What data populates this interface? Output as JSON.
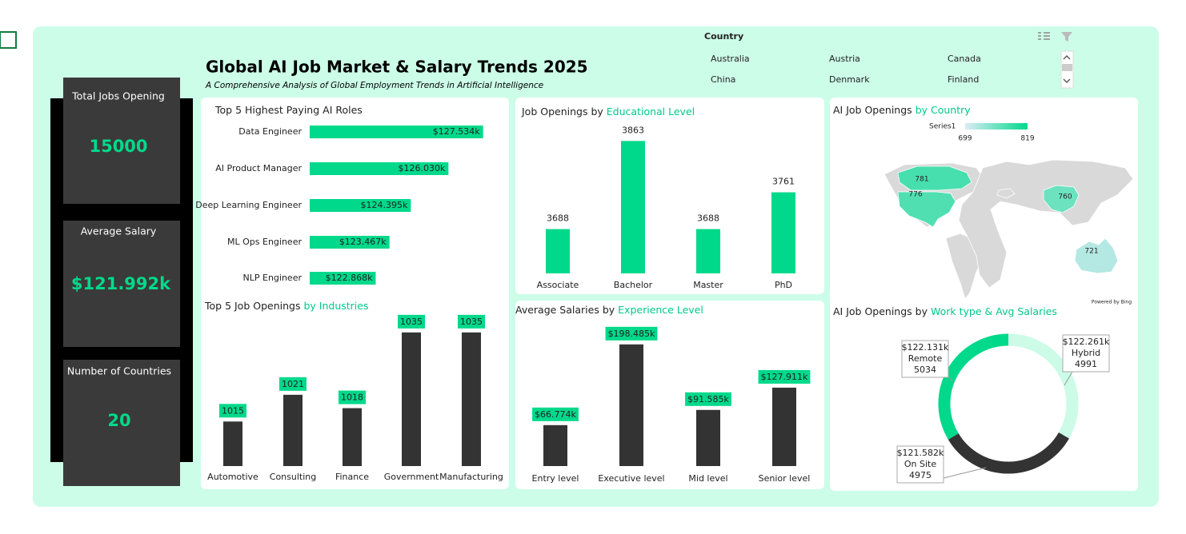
{
  "header": {
    "title": "Global AI Job Market & Salary Trends 2025",
    "subtitle": "A Comprehensive Analysis of Global Employment Trends in Artificial Intelligence"
  },
  "kpis": [
    {
      "label": "Total Jobs Opening",
      "value": 15000
    },
    {
      "label": "Average Salary",
      "value": "$121.992k"
    },
    {
      "label": "Number of Countries",
      "value": 20
    }
  ],
  "slicer": {
    "title": "Country",
    "items": [
      "Australia",
      "Austria",
      "Canada",
      "China",
      "Denmark",
      "Finland"
    ]
  },
  "chart_data": [
    {
      "type": "hbar",
      "title": "Top 5 Highest Paying AI Roles",
      "categories": [
        "Data Engineer",
        "AI Product Manager",
        "Deep Learning Engineer",
        "ML Ops Engineer",
        "NLP Engineer"
      ],
      "values": [
        127.534,
        126.03,
        124.395,
        123.467,
        122.868
      ],
      "value_labels": [
        "$127.534k",
        "$126.030k",
        "$124.395k",
        "$123.467k",
        "$122.868k"
      ],
      "xlim": [
        120,
        128
      ],
      "color": "#00d98b"
    },
    {
      "type": "bar",
      "title": "Top 5 Job Openings",
      "title_accent": "by Industries",
      "categories": [
        "Automotive",
        "Consulting",
        "Finance",
        "Government",
        "Manufacturing"
      ],
      "values": [
        1015,
        1021,
        1018,
        1035,
        1035
      ],
      "ylim": [
        1005,
        1040
      ],
      "color": "#333333",
      "label_color": "#00d98b"
    },
    {
      "type": "bar",
      "title": "Job Openings by",
      "title_accent": "Educational Level",
      "categories": [
        "Associate",
        "Bachelor",
        "Master",
        "PhD"
      ],
      "values": [
        3688,
        3863,
        3688,
        3761
      ],
      "ylim": [
        3600,
        3900
      ],
      "color": "#00d98b"
    },
    {
      "type": "bar",
      "title": "Average Salaries by",
      "title_accent": "Experience Level",
      "categories": [
        "Entry level",
        "Executive level",
        "Mid level",
        "Senior level"
      ],
      "values": [
        66.774,
        198.485,
        91.585,
        127.911
      ],
      "value_labels": [
        "$66.774k",
        "$198.485k",
        "$91.585k",
        "$127.911k"
      ],
      "ylim": [
        0,
        210
      ],
      "color": "#333333",
      "label_color": "#00d98b"
    },
    {
      "type": "map",
      "title": "AI Job Openings",
      "title_accent": "by Country",
      "legend_title": "Series1",
      "color_range": [
        699,
        819
      ],
      "values": [
        781,
        776,
        760,
        721
      ],
      "colors": [
        "#dcebf5",
        "#00d98b"
      ],
      "credit": "Powered by Bing"
    },
    {
      "type": "donut",
      "title": "AI Job Openings by",
      "title_accent": "Work type & Avg Salaries",
      "categories": [
        "Hybrid",
        "On Site",
        "Remote"
      ],
      "values": [
        4991,
        4975,
        5034
      ],
      "salary_labels": [
        "$122.261k",
        "$121.582k",
        "$122.131k"
      ],
      "colors": [
        "#ccfbe8",
        "#333333",
        "#00d98b"
      ]
    }
  ]
}
